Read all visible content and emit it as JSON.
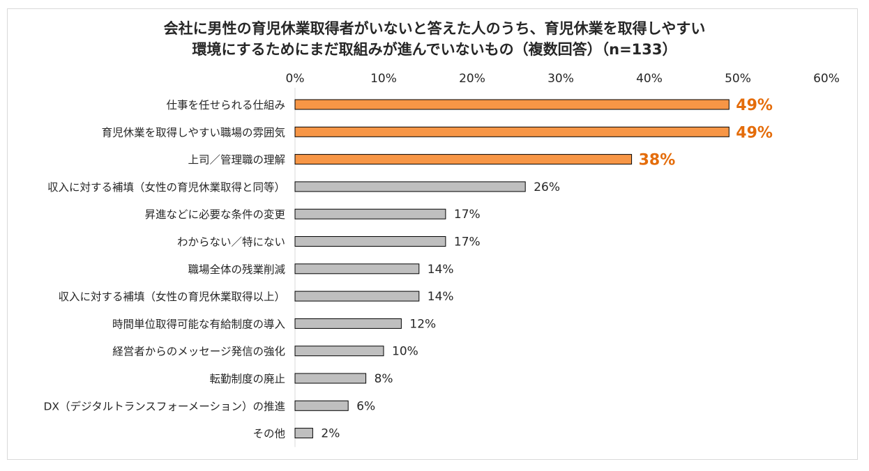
{
  "title_lines": [
    "会社に男性の育児休業取得者がいないと答えた人のうち、育児休業を取得しやすい",
    "環境にするためにまだ取組みが進んでいないもの（複数回答）（n=133）"
  ],
  "colors": {
    "highlight": "#F79646",
    "highlight_label": "#E46C0A",
    "normal": "#BFBFBF",
    "bar_outline": "#000000",
    "text": "#262626"
  },
  "chart_data": {
    "type": "bar",
    "orientation": "horizontal",
    "title": "会社に男性の育児休業取得者がいないと答えた人のうち、育児休業を取得しやすい環境にするためにまだ取組みが進んでいないもの（複数回答）（n=133）",
    "xlabel": "",
    "ylabel": "",
    "xlim": [
      0,
      60
    ],
    "x_ticks": [
      0,
      10,
      20,
      30,
      40,
      50,
      60
    ],
    "x_tick_labels": [
      "0%",
      "10%",
      "20%",
      "30%",
      "40%",
      "50%",
      "60%"
    ],
    "x_axis_position": "top",
    "grid": false,
    "legend": "none",
    "categories": [
      "仕事を任せられる仕組み",
      "育児休業を取得しやすい職場の雰囲気",
      "上司／管理職の理解",
      "収入に対する補填（女性の育児休業取得と同等）",
      "昇進などに必要な条件の変更",
      "わからない／特にない",
      "職場全体の残業削減",
      "収入に対する補填（女性の育児休業取得以上）",
      "時間単位取得可能な有給制度の導入",
      "経営者からのメッセージ発信の強化",
      "転勤制度の廃止",
      "DX（デジタルトランスフォーメーション）の推進",
      "その他"
    ],
    "values": [
      49,
      49,
      38,
      26,
      17,
      17,
      14,
      14,
      12,
      10,
      8,
      6,
      2
    ],
    "data_labels": [
      "49%",
      "49%",
      "38%",
      "26%",
      "17%",
      "17%",
      "14%",
      "14%",
      "12%",
      "10%",
      "8%",
      "6%",
      "2%"
    ],
    "highlighted": [
      true,
      true,
      true,
      false,
      false,
      false,
      false,
      false,
      false,
      false,
      false,
      false,
      false
    ]
  }
}
